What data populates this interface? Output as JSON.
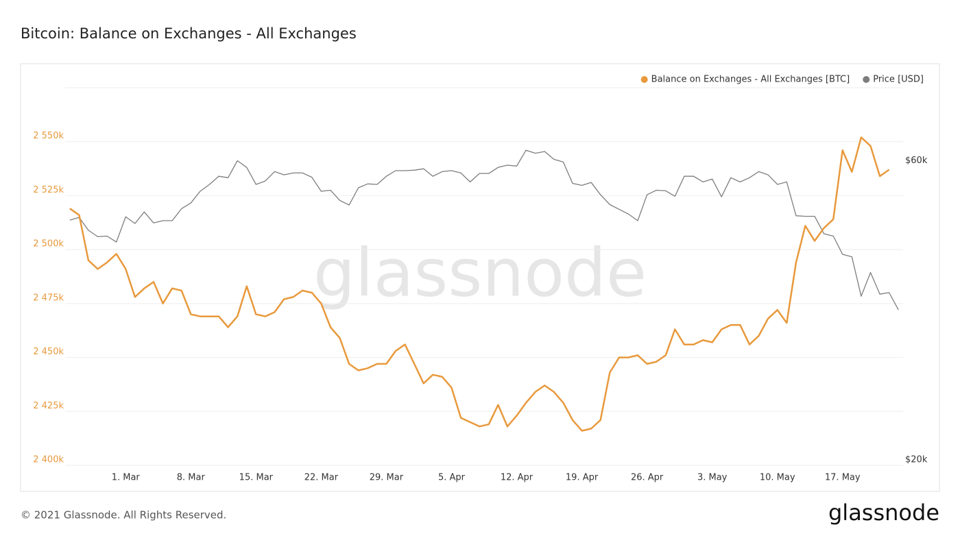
{
  "chart_data": {
    "type": "line",
    "title": "Bitcoin: Balance on Exchanges - All Exchanges",
    "watermark": "glassnode",
    "categories": [
      null,
      null,
      null,
      null,
      null,
      null,
      "1. Mar",
      null,
      null,
      null,
      null,
      null,
      null,
      "8. Mar",
      null,
      null,
      null,
      null,
      null,
      null,
      "15. Mar",
      null,
      null,
      null,
      null,
      null,
      null,
      "22. Mar",
      null,
      null,
      null,
      null,
      null,
      null,
      "29. Mar",
      null,
      null,
      null,
      null,
      null,
      null,
      "5. Apr",
      null,
      null,
      null,
      null,
      null,
      null,
      "12. Apr",
      null,
      null,
      null,
      null,
      null,
      null,
      "19. Apr",
      null,
      null,
      null,
      null,
      null,
      null,
      "26. Apr",
      null,
      null,
      null,
      null,
      null,
      null,
      "3. May",
      null,
      null,
      null,
      null,
      null,
      null,
      "10. May",
      null,
      null,
      null,
      null,
      null,
      null,
      "17. May",
      null,
      null,
      null,
      null,
      null,
      null
    ],
    "series": [
      {
        "name": "Balance on Exchanges - All Exchanges [BTC]",
        "color": "#e8993c",
        "axis": "y",
        "values": [
          2519000,
          2516000,
          2495000,
          2491000,
          2494000,
          2498000,
          2491000,
          2478000,
          2482000,
          2485000,
          2475000,
          2482000,
          2481000,
          2470000,
          2469000,
          2469000,
          2469000,
          2464000,
          2469000,
          2483000,
          2470000,
          2469000,
          2471000,
          2477000,
          2478000,
          2481000,
          2480000,
          2475000,
          2464000,
          2459000,
          2447000,
          2444000,
          2445000,
          2447000,
          2447000,
          2453000,
          2456000,
          2447000,
          2438000,
          2442000,
          2441000,
          2436000,
          2422000,
          2420000,
          2418000,
          2419000,
          2428000,
          2418000,
          2423000,
          2429000,
          2434000,
          2437000,
          2434000,
          2429000,
          2421000,
          2416000,
          2417000,
          2421000,
          2443000,
          2450000,
          2450000,
          2451000,
          2447000,
          2448000,
          2451000,
          2463000,
          2456000,
          2456000,
          2458000,
          2457000,
          2463000,
          2465000,
          2465000,
          2456000,
          2460000,
          2468000,
          2472000,
          2466000,
          2494000,
          2511000,
          2504000,
          2510000,
          2514000,
          2546000,
          2536000,
          2552000,
          2548000,
          2534000,
          2537000,
          null
        ]
      },
      {
        "name": "Price [USD]",
        "color": "#7d7d7d",
        "axis": "y2",
        "values": [
          49200,
          49700,
          47400,
          46300,
          46400,
          45400,
          49800,
          48600,
          50700,
          48700,
          49100,
          49100,
          51300,
          52400,
          54700,
          56100,
          57800,
          57500,
          61200,
          59700,
          56100,
          56800,
          58800,
          58100,
          58500,
          58500,
          57600,
          54700,
          54900,
          52900,
          52000,
          55400,
          56200,
          56100,
          57800,
          59000,
          59000,
          59100,
          59400,
          57800,
          58800,
          59000,
          58500,
          56600,
          58400,
          58400,
          59700,
          60200,
          60000,
          63600,
          62900,
          63300,
          61500,
          60900,
          56300,
          55900,
          56500,
          54000,
          52100,
          51200,
          50300,
          49100,
          54000,
          54900,
          54800,
          53700,
          57800,
          57800,
          56600,
          57200,
          53600,
          57500,
          56600,
          57500,
          58800,
          58100,
          56100,
          56600,
          50000,
          49900,
          49900,
          46800,
          46400,
          43400,
          43000,
          37200,
          40600,
          37500,
          37700,
          35400
        ]
      }
    ],
    "ylim": [
      2400000,
      2575000
    ],
    "yticks": [
      {
        "value": 2400000,
        "label": "2 400k"
      },
      {
        "value": 2425000,
        "label": "2 425k"
      },
      {
        "value": 2450000,
        "label": "2 450k"
      },
      {
        "value": 2475000,
        "label": "2 475k"
      },
      {
        "value": 2500000,
        "label": "2 500k"
      },
      {
        "value": 2525000,
        "label": "2 525k"
      },
      {
        "value": 2550000,
        "label": "2 550k"
      }
    ],
    "y2lim": [
      20000,
      80000
    ],
    "y2ticks": [
      {
        "value": 20000,
        "label": "$20k"
      },
      {
        "value": 60000,
        "label": "$60k"
      }
    ],
    "y2log": true,
    "grid": true,
    "legend": "top-right"
  },
  "footer": "© 2021 Glassnode. All Rights Reserved.",
  "logo": "glassnode"
}
